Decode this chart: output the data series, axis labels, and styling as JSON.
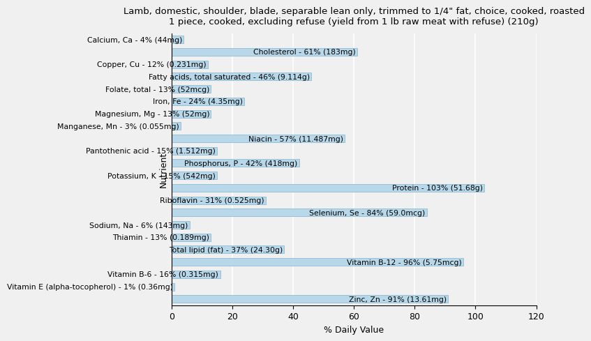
{
  "title": "Lamb, domestic, shoulder, blade, separable lean only, trimmed to 1/4\" fat, choice, cooked, roasted\n1 piece, cooked, excluding refuse (yield from 1 lb raw meat with refuse) (210g)",
  "xlabel": "% Daily Value",
  "ylabel": "Nutrient",
  "xlim": [
    0,
    120
  ],
  "nutrients": [
    "Calcium, Ca - 4% (44mg)",
    "Cholesterol - 61% (183mg)",
    "Copper, Cu - 12% (0.231mg)",
    "Fatty acids, total saturated - 46% (9.114g)",
    "Folate, total - 13% (52mcg)",
    "Iron, Fe - 24% (4.35mg)",
    "Magnesium, Mg - 13% (52mg)",
    "Manganese, Mn - 3% (0.055mg)",
    "Niacin - 57% (11.487mg)",
    "Pantothenic acid - 15% (1.512mg)",
    "Phosphorus, P - 42% (418mg)",
    "Potassium, K - 15% (542mg)",
    "Protein - 103% (51.68g)",
    "Riboflavin - 31% (0.525mg)",
    "Selenium, Se - 84% (59.0mcg)",
    "Sodium, Na - 6% (143mg)",
    "Thiamin - 13% (0.189mg)",
    "Total lipid (fat) - 37% (24.30g)",
    "Vitamin B-12 - 96% (5.75mcg)",
    "Vitamin B-6 - 16% (0.315mg)",
    "Vitamin E (alpha-tocopherol) - 1% (0.36mg)",
    "Zinc, Zn - 91% (13.61mg)"
  ],
  "values": [
    4,
    61,
    12,
    46,
    13,
    24,
    13,
    3,
    57,
    15,
    42,
    15,
    103,
    31,
    84,
    6,
    13,
    37,
    96,
    16,
    1,
    91
  ],
  "bar_color": "#b8d8ea",
  "bar_edge_color": "#7fb3d3",
  "bg_color": "#f0f0f0",
  "title_fontsize": 9.5,
  "label_fontsize": 7.8,
  "tick_fontsize": 9,
  "xtick_values": [
    0,
    20,
    40,
    60,
    80,
    100,
    120
  ]
}
